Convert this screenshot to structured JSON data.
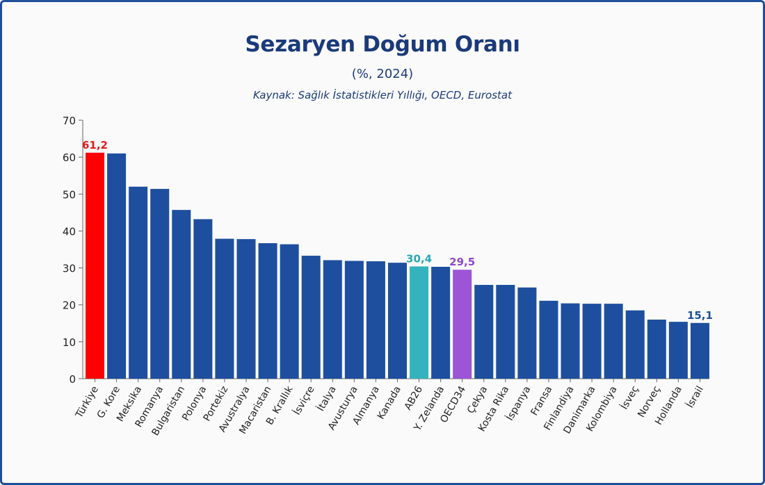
{
  "chart_data": {
    "type": "bar",
    "title": "Sezaryen Doğum Oranı",
    "subtitle": "(%, 2024)",
    "source": "Kaynak: Sağlık İstatistikleri Yıllığı, OECD, Eurostat",
    "categories": [
      "Türkiye",
      "G. Kore",
      "Meksika",
      "Romanya",
      "Bulgaristan",
      "Polonya",
      "Portekiz",
      "Avustralya",
      "Macaristan",
      "B. Krallık",
      "İsviçre",
      "İtalya",
      "Avusturya",
      "Almanya",
      "Kanada",
      "AB26",
      "Y. Zelanda",
      "OECD34",
      "Çekya",
      "Kosta Rika",
      "İspanya",
      "Fransa",
      "Finlandiya",
      "Danimarka",
      "Kolombiya",
      "İsveç",
      "Norveç",
      "Hollanda",
      "İsrail"
    ],
    "values": [
      61.2,
      61.0,
      52.0,
      51.4,
      45.7,
      43.2,
      37.9,
      37.8,
      36.7,
      36.4,
      33.3,
      32.1,
      31.9,
      31.8,
      31.4,
      30.4,
      30.3,
      29.5,
      25.4,
      25.4,
      24.7,
      21.1,
      20.4,
      20.3,
      20.3,
      18.5,
      16.0,
      15.4,
      15.1
    ],
    "ylim": [
      0,
      70
    ],
    "yticks": [
      0,
      10,
      20,
      30,
      40,
      50,
      60,
      70
    ],
    "grid": false,
    "colors": {
      "default": "#1e4f9e",
      "Türkiye": "#ff0000",
      "AB26": "#34b3bd",
      "OECD34": "#9b55d6"
    },
    "data_labels": [
      {
        "category": "Türkiye",
        "text": "61,2",
        "color": "#e21b1b"
      },
      {
        "category": "AB26",
        "text": "30,4",
        "color": "#2aa8b3"
      },
      {
        "category": "OECD34",
        "text": "29,5",
        "color": "#8e48c9"
      },
      {
        "category": "İsrail",
        "text": "15,1",
        "color": "#1e4f9e"
      }
    ]
  }
}
